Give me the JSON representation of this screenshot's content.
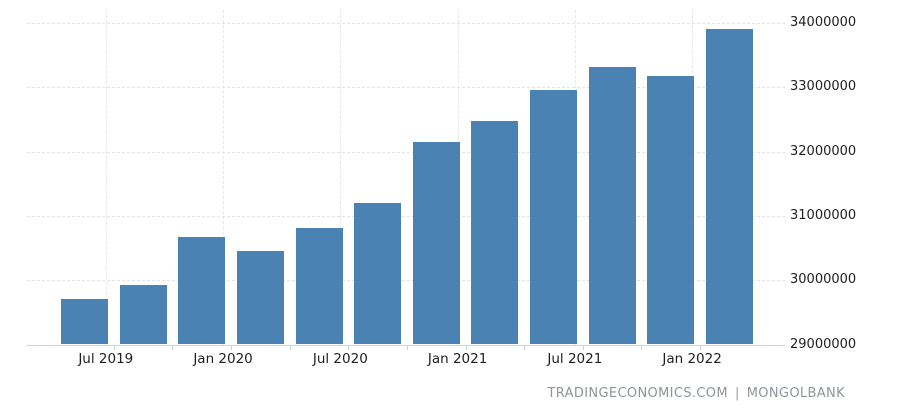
{
  "chart_data": {
    "type": "bar",
    "title": "",
    "xlabel": "",
    "ylabel": "",
    "categories": [
      "2019-Q2",
      "2019-Q3",
      "2019-Q4",
      "2020-Q1",
      "2020-Q2",
      "2020-Q3",
      "2020-Q4",
      "2021-Q1",
      "2021-Q2",
      "2021-Q3",
      "2021-Q4",
      "2022-Q1"
    ],
    "values": [
      29700000,
      29930000,
      30670000,
      30460000,
      30810000,
      31200000,
      32150000,
      32470000,
      32960000,
      33310000,
      33170000,
      33910000
    ],
    "x_tick_labels": [
      "Jul 2019",
      "Jan 2020",
      "Jul 2020",
      "Jan 2021",
      "Jul 2021",
      "Jan 2022"
    ],
    "y_ticks": [
      29000000,
      30000000,
      31000000,
      32000000,
      33000000,
      34000000
    ],
    "y_tick_labels": [
      "29000000",
      "30000000",
      "31000000",
      "32000000",
      "33000000",
      "34000000"
    ],
    "ylim": [
      29000000,
      34000000
    ],
    "y_axis_side": "right",
    "grid": true,
    "legend": false,
    "bar_color": "#4A82B4",
    "grid_color": "#e4e4e4",
    "axis_line_color": "#d2d2d2",
    "label_color": "#1f1f1f"
  },
  "attribution": {
    "site": "TRADINGECONOMICS.COM",
    "separator": "|",
    "source": "MONGOLBANK"
  }
}
